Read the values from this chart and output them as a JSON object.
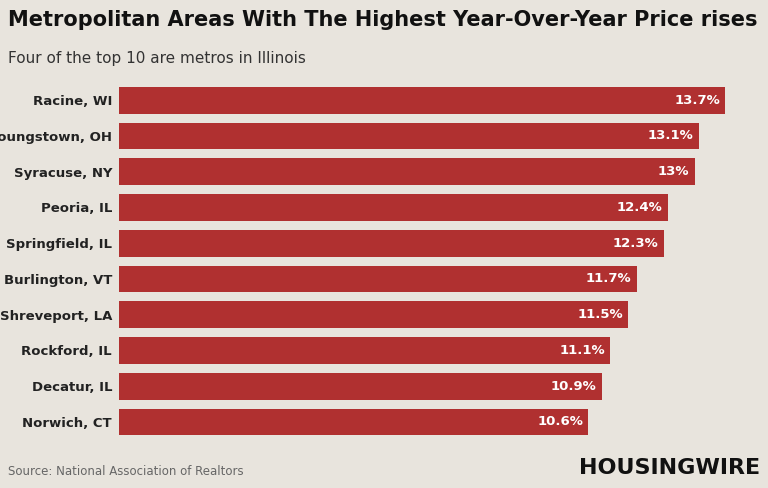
{
  "title": "Metropolitan Areas With The Highest Year-Over-Year Price rises",
  "subtitle": "Four of the top 10 are metros in Illinois",
  "source": "Source: National Association of Realtors",
  "watermark": "HOUSINGWIRE",
  "categories": [
    "Racine, WI",
    "Youngstown, OH",
    "Syracuse, NY",
    "Peoria, IL",
    "Springfield, IL",
    "Burlington, VT",
    "Shreveport, LA",
    "Rockford, IL",
    "Decatur, IL",
    "Norwich, CT"
  ],
  "values": [
    13.7,
    13.1,
    13.0,
    12.4,
    12.3,
    11.7,
    11.5,
    11.1,
    10.9,
    10.6
  ],
  "labels": [
    "13.7%",
    "13.1%",
    "13%",
    "12.4%",
    "12.3%",
    "11.7%",
    "11.5%",
    "11.1%",
    "10.9%",
    "10.6%"
  ],
  "bar_color": "#b03030",
  "background_color": "#e8e4dd",
  "title_fontsize": 15,
  "subtitle_fontsize": 11,
  "label_fontsize": 9.5,
  "category_fontsize": 9.5,
  "source_fontsize": 8.5,
  "watermark_fontsize": 16,
  "xlim": [
    0,
    14.4
  ]
}
